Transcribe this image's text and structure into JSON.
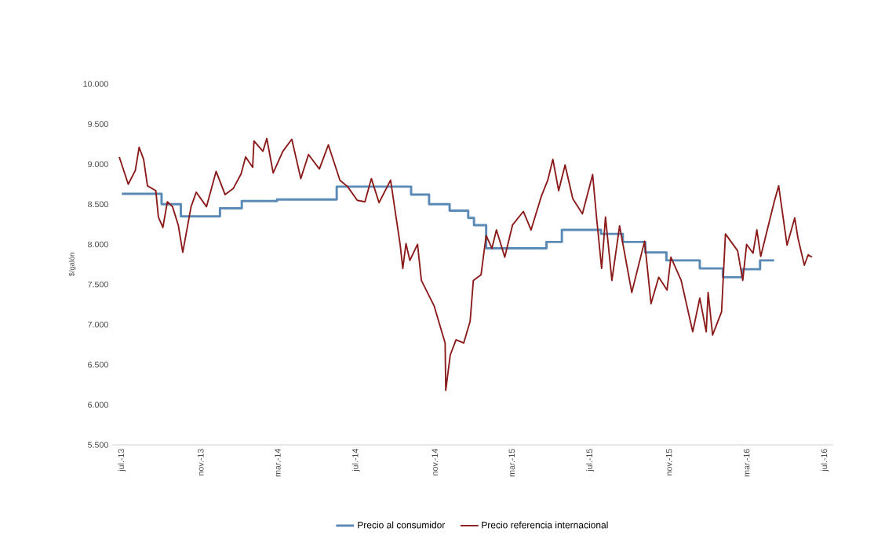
{
  "chart_data": {
    "type": "line",
    "ylabel": "$/galón",
    "ylim": [
      5500,
      10000
    ],
    "yticks": [
      {
        "value": 5500,
        "label": "5.500"
      },
      {
        "value": 6000,
        "label": "6.000"
      },
      {
        "value": 6500,
        "label": "6.500"
      },
      {
        "value": 7000,
        "label": "7.000"
      },
      {
        "value": 7500,
        "label": "7.500"
      },
      {
        "value": 8000,
        "label": "8.000"
      },
      {
        "value": 8500,
        "label": "8.500"
      },
      {
        "value": 9000,
        "label": "9.000"
      },
      {
        "value": 9500,
        "label": "9.500"
      },
      {
        "value": 10000,
        "label": "10.000"
      }
    ],
    "xlim": [
      "2013-06-16",
      "2016-07-14"
    ],
    "xticks": [
      {
        "value": "2013-07-01",
        "label": "jul.-13"
      },
      {
        "value": "2013-11-01",
        "label": "nov.-13"
      },
      {
        "value": "2014-03-01",
        "label": "mar.-14"
      },
      {
        "value": "2014-07-01",
        "label": "jul.-14"
      },
      {
        "value": "2014-11-01",
        "label": "nov.-14"
      },
      {
        "value": "2015-03-01",
        "label": "mar.-15"
      },
      {
        "value": "2015-07-01",
        "label": "jul.-15"
      },
      {
        "value": "2015-11-01",
        "label": "nov.-15"
      },
      {
        "value": "2016-03-01",
        "label": "mar.-16"
      },
      {
        "value": "2016-07-01",
        "label": "jul.-16"
      }
    ],
    "legend": "bottom",
    "series": [
      {
        "name": "Precio al consumidor",
        "type": "step",
        "color": "#5a8ab5",
        "x": [
          "2013-07-01",
          "2013-09-01",
          "2013-10-01",
          "2013-12-01",
          "2014-01-04",
          "2014-02-28",
          "2014-06-01",
          "2014-09-25",
          "2014-10-23",
          "2014-11-24",
          "2014-12-23",
          "2015-01-01",
          "2015-01-20",
          "2015-04-24",
          "2015-05-18",
          "2015-07-18",
          "2015-08-21",
          "2015-09-25",
          "2015-10-28",
          "2015-12-19",
          "2016-01-24",
          "2016-02-23",
          "2016-03-22",
          "2016-04-13"
        ],
        "values": [
          8630,
          8500,
          8350,
          8450,
          8540,
          8560,
          8720,
          8620,
          8500,
          8420,
          8330,
          8240,
          7950,
          8030,
          8180,
          8130,
          8030,
          7900,
          7800,
          7700,
          7590,
          7690,
          7800,
          7800
        ]
      },
      {
        "name": "Precio referencia internacional",
        "type": "line",
        "color": "#8b1a1a",
        "x": [
          "2013-06-27",
          "2013-07-11",
          "2013-07-22",
          "2013-07-28",
          "2013-08-04",
          "2013-08-10",
          "2013-08-23",
          "2013-08-27",
          "2013-09-03",
          "2013-09-10",
          "2013-09-18",
          "2013-09-27",
          "2013-10-04",
          "2013-10-17",
          "2013-10-25",
          "2013-11-10",
          "2013-11-25",
          "2013-12-09",
          "2013-12-22",
          "2014-01-03",
          "2014-01-10",
          "2014-01-21",
          "2014-01-23",
          "2014-02-06",
          "2014-02-12",
          "2014-02-22",
          "2014-03-09",
          "2014-03-23",
          "2014-04-06",
          "2014-04-18",
          "2014-05-05",
          "2014-05-19",
          "2014-06-06",
          "2014-06-18",
          "2014-07-03",
          "2014-07-15",
          "2014-07-25",
          "2014-08-06",
          "2014-08-24",
          "2014-08-29",
          "2014-09-08",
          "2014-09-12",
          "2014-09-17",
          "2014-09-23",
          "2014-10-05",
          "2014-10-11",
          "2014-10-31",
          "2014-11-17",
          "2014-11-18",
          "2014-11-25",
          "2014-12-04",
          "2014-12-16",
          "2014-12-26",
          "2014-12-31",
          "2015-01-12",
          "2015-01-20",
          "2015-01-29",
          "2015-02-05",
          "2015-02-18",
          "2015-03-02",
          "2015-03-19",
          "2015-03-31",
          "2015-04-16",
          "2015-04-26",
          "2015-05-04",
          "2015-05-13",
          "2015-05-23",
          "2015-06-04",
          "2015-06-19",
          "2015-07-05",
          "2015-07-11",
          "2015-07-19",
          "2015-07-25",
          "2015-08-04",
          "2015-08-16",
          "2015-09-04",
          "2015-09-24",
          "2015-10-04",
          "2015-10-16",
          "2015-10-29",
          "2015-11-04",
          "2015-11-20",
          "2015-12-08",
          "2015-12-19",
          "2015-12-29",
          "2016-01-01",
          "2016-01-08",
          "2016-01-22",
          "2016-01-28",
          "2016-02-16",
          "2016-02-24",
          "2016-03-01",
          "2016-03-11",
          "2016-03-17",
          "2016-03-23",
          "2016-04-13",
          "2016-04-20",
          "2016-05-03",
          "2016-05-15",
          "2016-05-20",
          "2016-05-30",
          "2016-06-05",
          "2016-06-11"
        ],
        "values": [
          9090,
          8750,
          8920,
          9210,
          9060,
          8730,
          8670,
          8340,
          8210,
          8530,
          8470,
          8240,
          7900,
          8470,
          8650,
          8470,
          8910,
          8620,
          8700,
          8880,
          9090,
          8960,
          9290,
          9160,
          9320,
          8890,
          9160,
          9310,
          8820,
          9120,
          8940,
          9240,
          8800,
          8720,
          8550,
          8530,
          8820,
          8520,
          8800,
          8530,
          7990,
          7700,
          8010,
          7800,
          8000,
          7550,
          7230,
          6770,
          6180,
          6620,
          6810,
          6770,
          7040,
          7550,
          7620,
          8110,
          7950,
          8180,
          7840,
          8240,
          8410,
          8180,
          8600,
          8800,
          9060,
          8670,
          8990,
          8570,
          8380,
          8870,
          8340,
          7700,
          8340,
          7550,
          8230,
          7400,
          8040,
          7260,
          7590,
          7430,
          7840,
          7550,
          6910,
          7330,
          6910,
          7400,
          6870,
          7160,
          8130,
          7920,
          7550,
          8000,
          7890,
          8180,
          7850,
          8530,
          8730,
          7990,
          8330,
          8080,
          7740,
          7870,
          7840
        ]
      }
    ]
  }
}
